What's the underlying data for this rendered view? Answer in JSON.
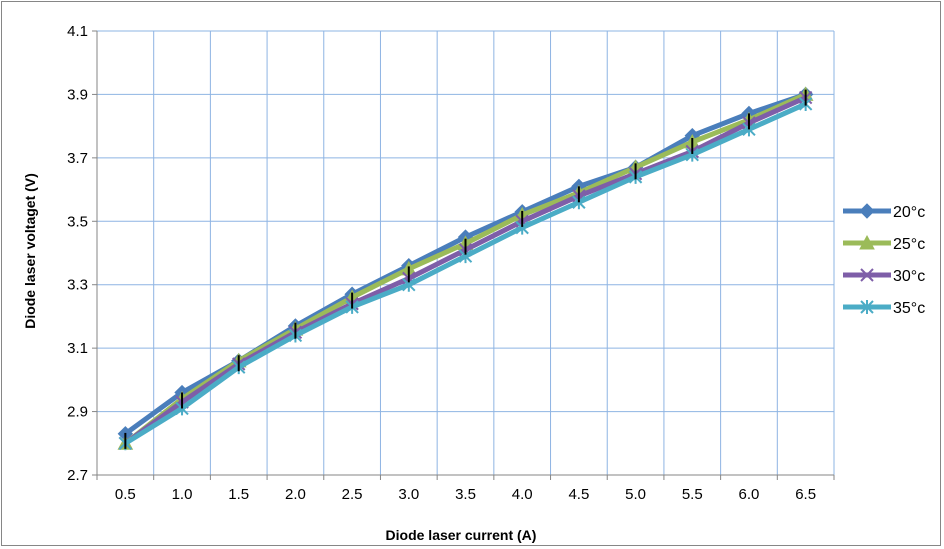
{
  "chart_data": {
    "type": "line",
    "title": "",
    "xlabel": "Diode laser current (A)",
    "ylabel": "Diode laser voltaget (V)",
    "categories": [
      "0.5",
      "1.0",
      "1.5",
      "2.0",
      "2.5",
      "3.0",
      "3.5",
      "4.0",
      "4.5",
      "5.0",
      "5.5",
      "6.0",
      "6.5"
    ],
    "ylim": [
      2.7,
      4.1
    ],
    "yticks": [
      "2.7",
      "2.9",
      "3.1",
      "3.3",
      "3.5",
      "3.7",
      "3.9",
      "4.1"
    ],
    "grid": true,
    "error_bars": true,
    "legend_position": "right",
    "series": [
      {
        "name": "20°c",
        "color": "#4a7ebb",
        "marker": "diamond",
        "values": [
          2.83,
          2.96,
          3.06,
          3.17,
          3.27,
          3.36,
          3.45,
          3.53,
          3.61,
          3.67,
          3.77,
          3.84,
          3.9
        ]
      },
      {
        "name": "25°c",
        "color": "#9bbb59",
        "marker": "triangle",
        "values": [
          2.8,
          2.94,
          3.06,
          3.16,
          3.26,
          3.35,
          3.43,
          3.52,
          3.59,
          3.67,
          3.75,
          3.82,
          3.9
        ]
      },
      {
        "name": "30°c",
        "color": "#7e5ea8",
        "marker": "x",
        "values": [
          2.8,
          2.93,
          3.05,
          3.15,
          3.24,
          3.32,
          3.41,
          3.5,
          3.58,
          3.65,
          3.72,
          3.81,
          3.89
        ]
      },
      {
        "name": "35°c",
        "color": "#4bacc6",
        "marker": "star",
        "values": [
          2.8,
          2.91,
          3.04,
          3.14,
          3.23,
          3.3,
          3.39,
          3.48,
          3.56,
          3.64,
          3.71,
          3.79,
          3.87
        ]
      }
    ]
  }
}
